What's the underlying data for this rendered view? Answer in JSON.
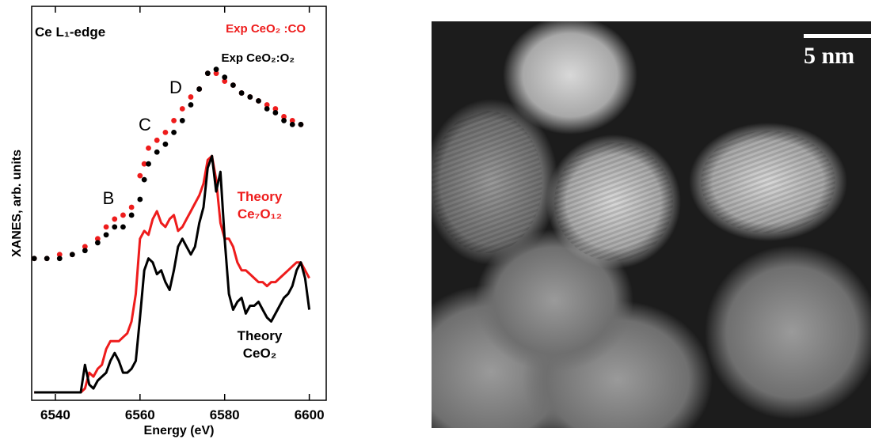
{
  "chart_data": {
    "type": "line",
    "title": "Ce L₁-edge",
    "x_label": "Energy (eV)",
    "y_label": "XANES, arb. units",
    "annotations": [
      "B",
      "C",
      "D"
    ],
    "xlim": [
      6534.4,
      6604
    ],
    "ylim": [
      0,
      1
    ],
    "xticks": [
      6540,
      6560,
      6580,
      6600
    ],
    "series": [
      {
        "name": "Exp CeO₂ :CO",
        "color": "#ee1c1c",
        "marker": "o",
        "x": [
          6535,
          6538,
          6541,
          6544,
          6547,
          6550,
          6552,
          6554,
          6556,
          6558,
          6560,
          6561,
          6562,
          6564,
          6566,
          6568,
          6570,
          6572,
          6574,
          6576,
          6578,
          6580,
          6582,
          6584,
          6586,
          6588,
          6590,
          6592,
          6594,
          6596,
          6598
        ],
        "values": [
          0.36,
          0.36,
          0.37,
          0.37,
          0.39,
          0.41,
          0.44,
          0.46,
          0.47,
          0.49,
          0.57,
          0.6,
          0.64,
          0.66,
          0.68,
          0.71,
          0.74,
          0.77,
          0.79,
          0.83,
          0.83,
          0.81,
          0.8,
          0.78,
          0.77,
          0.76,
          0.75,
          0.74,
          0.72,
          0.71,
          0.7
        ]
      },
      {
        "name": "Exp CeO₂:O₂",
        "color": "#000000",
        "marker": "o",
        "x": [
          6535,
          6538,
          6541,
          6544,
          6547,
          6550,
          6552,
          6554,
          6556,
          6558,
          6560,
          6561,
          6562,
          6564,
          6566,
          6568,
          6570,
          6572,
          6574,
          6576,
          6578,
          6580,
          6582,
          6584,
          6586,
          6588,
          6590,
          6592,
          6594,
          6596,
          6598
        ],
        "values": [
          0.36,
          0.36,
          0.36,
          0.37,
          0.38,
          0.4,
          0.42,
          0.44,
          0.44,
          0.47,
          0.51,
          0.56,
          0.6,
          0.63,
          0.65,
          0.68,
          0.71,
          0.75,
          0.79,
          0.83,
          0.84,
          0.82,
          0.8,
          0.78,
          0.77,
          0.76,
          0.74,
          0.73,
          0.71,
          0.7,
          0.7
        ]
      },
      {
        "name": "Theory Ce₇O₁₂",
        "color": "#ee1c1c",
        "marker": "none",
        "x": [
          6535,
          6536,
          6537,
          6538,
          6539,
          6540,
          6541,
          6542,
          6543,
          6544,
          6545,
          6546,
          6547,
          6548,
          6549,
          6550,
          6551,
          6552,
          6553,
          6554,
          6555,
          6556,
          6557,
          6558,
          6559,
          6560,
          6561,
          6562,
          6563,
          6564,
          6565,
          6566,
          6567,
          6568,
          6569,
          6570,
          6571,
          6572,
          6573,
          6574,
          6575,
          6576,
          6577,
          6578,
          6579,
          6580,
          6581,
          6582,
          6583,
          6584,
          6585,
          6586,
          6587,
          6588,
          6589,
          6590,
          6591,
          6592,
          6593,
          6594,
          6595,
          6596,
          6597,
          6598,
          6599,
          6600
        ],
        "values": [
          0.02,
          0.02,
          0.02,
          0.02,
          0.02,
          0.02,
          0.02,
          0.02,
          0.02,
          0.02,
          0.02,
          0.02,
          0.03,
          0.07,
          0.06,
          0.08,
          0.09,
          0.13,
          0.15,
          0.15,
          0.15,
          0.16,
          0.17,
          0.2,
          0.27,
          0.41,
          0.43,
          0.42,
          0.46,
          0.48,
          0.45,
          0.44,
          0.46,
          0.47,
          0.43,
          0.44,
          0.46,
          0.48,
          0.5,
          0.52,
          0.55,
          0.61,
          0.62,
          0.56,
          0.45,
          0.41,
          0.41,
          0.39,
          0.35,
          0.33,
          0.33,
          0.32,
          0.31,
          0.3,
          0.3,
          0.29,
          0.3,
          0.3,
          0.31,
          0.32,
          0.33,
          0.34,
          0.35,
          0.35,
          0.33,
          0.31
        ]
      },
      {
        "name": "Theory CeO₂",
        "color": "#000000",
        "marker": "none",
        "x": [
          6535,
          6536,
          6537,
          6538,
          6539,
          6540,
          6541,
          6542,
          6543,
          6544,
          6545,
          6546,
          6547,
          6548,
          6549,
          6550,
          6551,
          6552,
          6553,
          6554,
          6555,
          6556,
          6557,
          6558,
          6559,
          6560,
          6561,
          6562,
          6563,
          6564,
          6565,
          6566,
          6567,
          6568,
          6569,
          6570,
          6571,
          6572,
          6573,
          6574,
          6575,
          6576,
          6577,
          6578,
          6579,
          6580,
          6581,
          6582,
          6583,
          6584,
          6585,
          6586,
          6587,
          6588,
          6589,
          6590,
          6591,
          6592,
          6593,
          6594,
          6595,
          6596,
          6597,
          6598,
          6599,
          6600
        ],
        "values": [
          0.02,
          0.02,
          0.02,
          0.02,
          0.02,
          0.02,
          0.02,
          0.02,
          0.02,
          0.02,
          0.02,
          0.02,
          0.09,
          0.04,
          0.03,
          0.05,
          0.06,
          0.07,
          0.1,
          0.12,
          0.1,
          0.07,
          0.07,
          0.08,
          0.1,
          0.21,
          0.33,
          0.36,
          0.35,
          0.32,
          0.33,
          0.3,
          0.28,
          0.33,
          0.39,
          0.41,
          0.39,
          0.37,
          0.39,
          0.45,
          0.49,
          0.59,
          0.62,
          0.53,
          0.58,
          0.41,
          0.27,
          0.23,
          0.25,
          0.26,
          0.22,
          0.24,
          0.24,
          0.25,
          0.23,
          0.21,
          0.2,
          0.22,
          0.24,
          0.26,
          0.27,
          0.29,
          0.33,
          0.35,
          0.31,
          0.23
        ]
      }
    ]
  },
  "image": {
    "scale_bar": "5 nm"
  }
}
